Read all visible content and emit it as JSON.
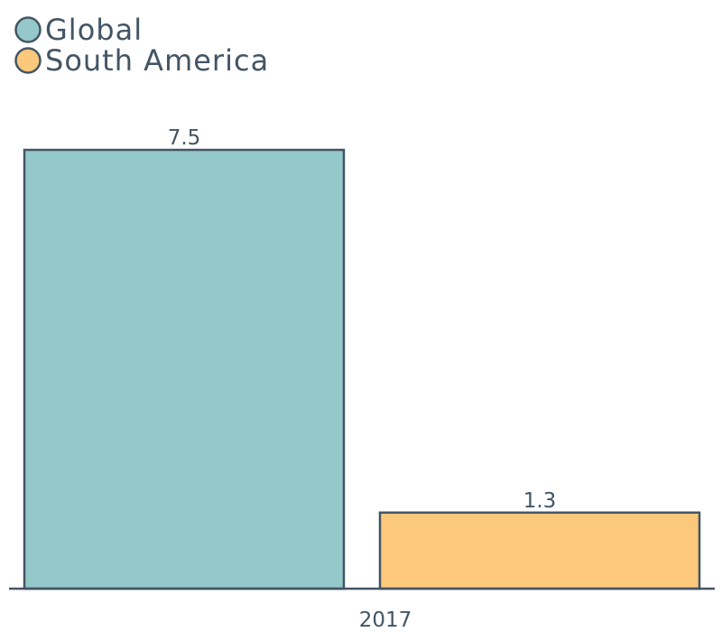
{
  "chart_data": {
    "type": "bar",
    "categories": [
      "2017"
    ],
    "series": [
      {
        "name": "Global",
        "values": [
          7.5
        ],
        "color": "#95c8c9"
      },
      {
        "name": "South America",
        "values": [
          1.3
        ],
        "color": "#fcc87c"
      }
    ],
    "ylim": [
      0,
      7.5
    ],
    "grid": false,
    "legend": "top-left",
    "text_color": "#435564",
    "stroke_color": "#435564"
  }
}
